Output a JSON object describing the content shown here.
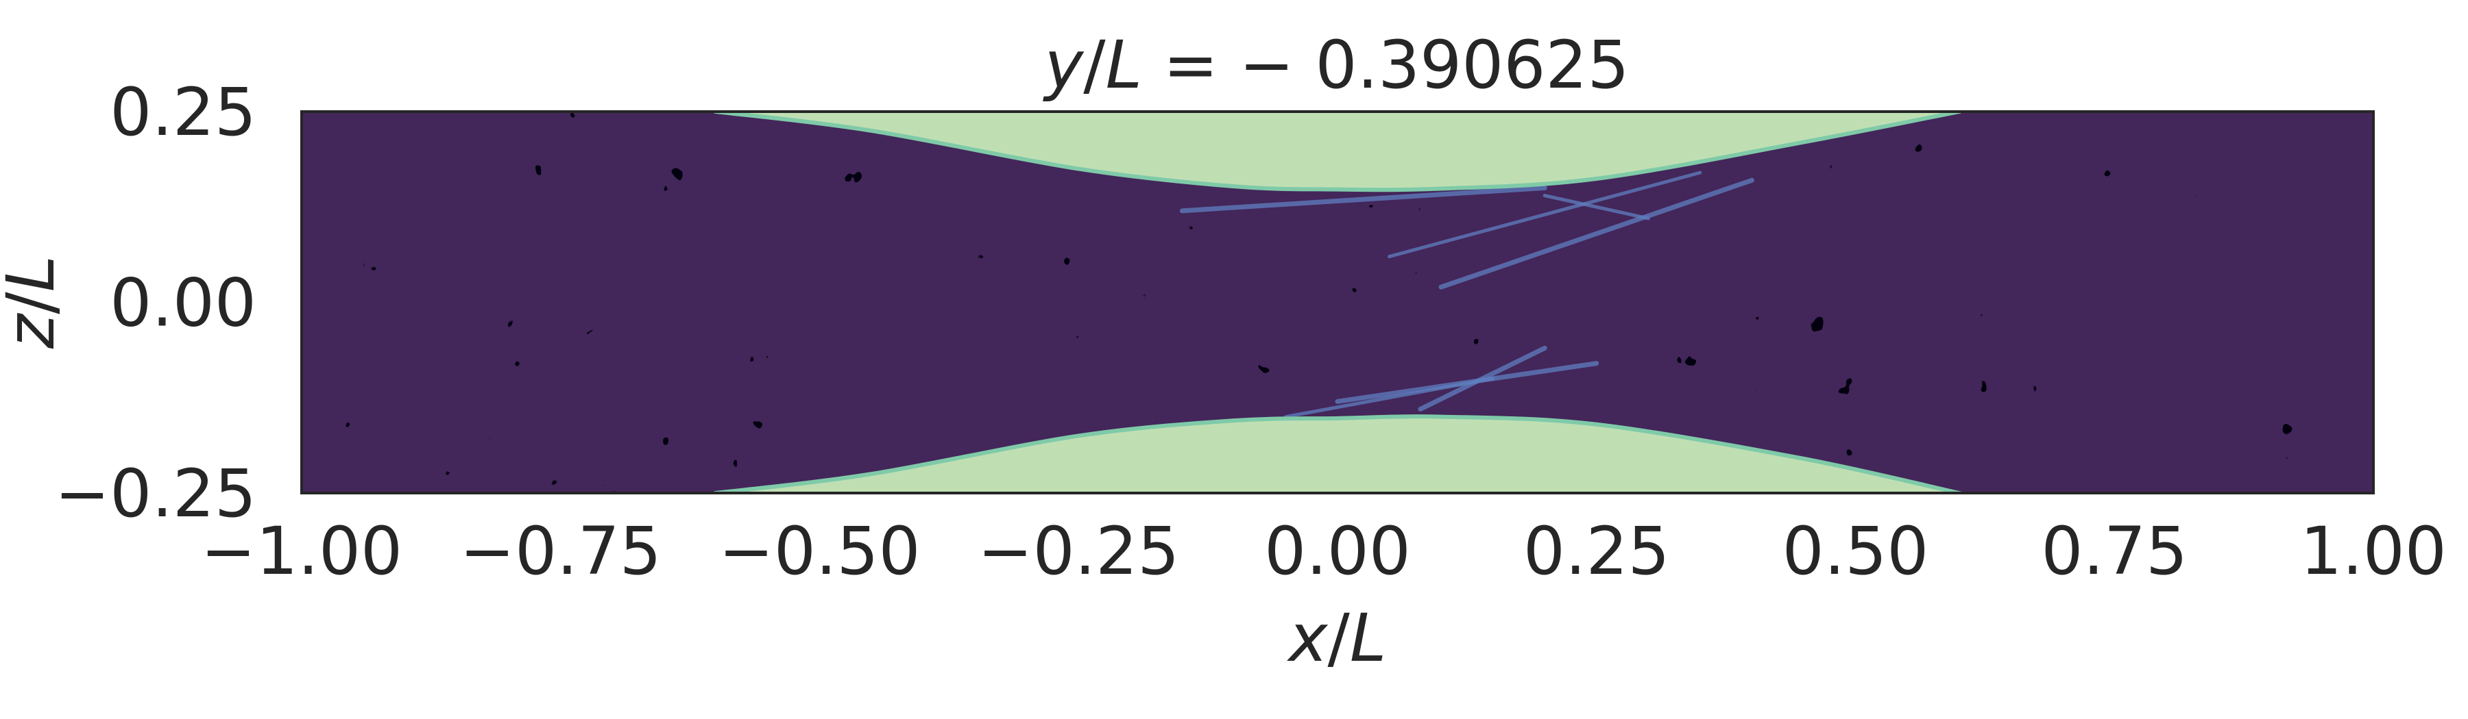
{
  "chart_data": {
    "type": "heatmap",
    "title": {
      "var": "y",
      "slash": "/",
      "scale": "L",
      "eq": " = ",
      "value": "− 0.390625"
    },
    "xlabel": {
      "var": "x",
      "slash": "/",
      "scale": "L"
    },
    "ylabel": {
      "var": "z",
      "slash": "/",
      "scale": "L"
    },
    "xlim": [
      -1.0,
      1.0
    ],
    "ylim": [
      -0.25,
      0.25
    ],
    "xticks": [
      -1.0,
      -0.75,
      -0.5,
      -0.25,
      0.0,
      0.25,
      0.5,
      0.75,
      1.0
    ],
    "xtick_labels": [
      "−1.00",
      "−0.75",
      "−0.50",
      "−0.25",
      "0.00",
      "0.25",
      "0.50",
      "0.75",
      "1.00"
    ],
    "yticks": [
      0.25,
      0.0,
      -0.25
    ],
    "ytick_labels": [
      "0.25",
      "0.00",
      "−0.25"
    ],
    "grid": false,
    "colors": {
      "background_phase": "#43265a",
      "speckle": "#050308",
      "constriction_phase": "#bfdfb3",
      "interface": "#7fcaa8",
      "streak": "#5f7fc0"
    },
    "constriction": {
      "description_points_top": [
        [
          -0.6,
          0.25
        ],
        [
          -0.45,
          0.225
        ],
        [
          -0.25,
          0.175
        ],
        [
          -0.1,
          0.152
        ],
        [
          0.0,
          0.148
        ],
        [
          0.1,
          0.149
        ],
        [
          0.25,
          0.162
        ],
        [
          0.45,
          0.21
        ],
        [
          0.6,
          0.25
        ]
      ],
      "description_points_bottom": [
        [
          -0.6,
          -0.25
        ],
        [
          -0.45,
          -0.225
        ],
        [
          -0.25,
          -0.175
        ],
        [
          -0.1,
          -0.155
        ],
        [
          0.0,
          -0.152
        ],
        [
          0.1,
          -0.15
        ],
        [
          0.25,
          -0.16
        ],
        [
          0.45,
          -0.205
        ],
        [
          0.6,
          -0.25
        ]
      ]
    },
    "streaks": [
      [
        [
          -0.15,
          0.12
        ],
        [
          0.2,
          0.15
        ]
      ],
      [
        [
          0.05,
          0.06
        ],
        [
          0.35,
          0.17
        ]
      ],
      [
        [
          0.1,
          0.02
        ],
        [
          0.4,
          0.16
        ]
      ],
      [
        [
          0.2,
          0.14
        ],
        [
          0.3,
          0.11
        ]
      ],
      [
        [
          0.0,
          -0.13
        ],
        [
          0.25,
          -0.08
        ]
      ],
      [
        [
          -0.05,
          -0.15
        ],
        [
          0.15,
          -0.1
        ]
      ],
      [
        [
          0.08,
          -0.14
        ],
        [
          0.2,
          -0.06
        ]
      ]
    ]
  }
}
